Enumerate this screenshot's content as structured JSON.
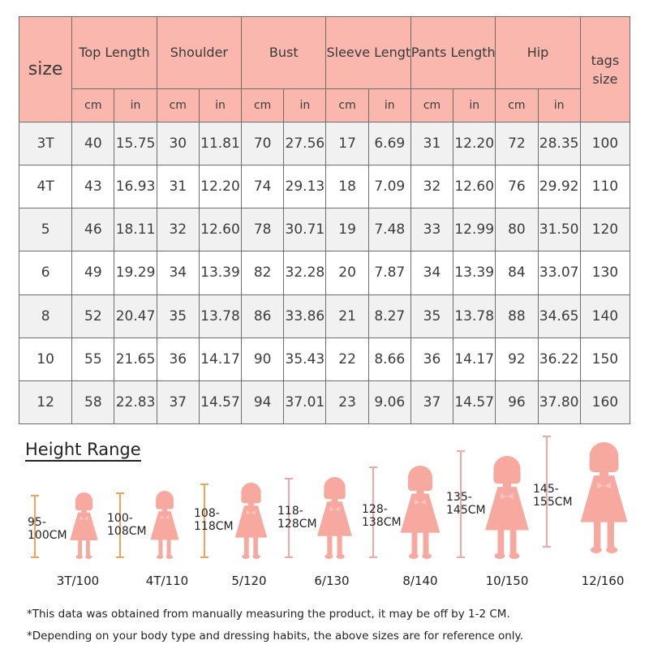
{
  "table": {
    "size_header": "size",
    "columns": [
      {
        "label": "Top Length",
        "units": [
          "cm",
          "in"
        ]
      },
      {
        "label": "Shoulder",
        "units": [
          "cm",
          "in"
        ]
      },
      {
        "label": "Bust",
        "units": [
          "cm",
          "in"
        ]
      },
      {
        "label": "Sleeve Length",
        "units": [
          "cm",
          "in"
        ]
      },
      {
        "label": "Pants Length",
        "units": [
          "cm",
          "in"
        ]
      },
      {
        "label": "Hip",
        "units": [
          "cm",
          "in"
        ]
      }
    ],
    "tags_header": "tags size",
    "rows": [
      [
        "3T",
        "40",
        "15.75",
        "30",
        "11.81",
        "70",
        "27.56",
        "17",
        "6.69",
        "31",
        "12.20",
        "72",
        "28.35",
        "100"
      ],
      [
        "4T",
        "43",
        "16.93",
        "31",
        "12.20",
        "74",
        "29.13",
        "18",
        "7.09",
        "32",
        "12.60",
        "76",
        "29.92",
        "110"
      ],
      [
        "5",
        "46",
        "18.11",
        "32",
        "12.60",
        "78",
        "30.71",
        "19",
        "7.48",
        "33",
        "12.99",
        "80",
        "31.50",
        "120"
      ],
      [
        "6",
        "49",
        "19.29",
        "34",
        "13.39",
        "82",
        "32.28",
        "20",
        "7.87",
        "34",
        "13.39",
        "84",
        "33.07",
        "130"
      ],
      [
        "8",
        "52",
        "20.47",
        "35",
        "13.78",
        "86",
        "33.86",
        "21",
        "8.27",
        "35",
        "13.78",
        "88",
        "34.65",
        "140"
      ],
      [
        "10",
        "55",
        "21.65",
        "36",
        "14.17",
        "90",
        "35.43",
        "22",
        "8.66",
        "36",
        "14.17",
        "92",
        "36.22",
        "150"
      ],
      [
        "12",
        "58",
        "22.83",
        "37",
        "14.57",
        "94",
        "37.01",
        "23",
        "9.06",
        "37",
        "14.57",
        "96",
        "37.80",
        "160"
      ]
    ]
  },
  "height_range": {
    "title": "Height Range",
    "items": [
      {
        "size": "3T/100",
        "range_top": "95-",
        "range_bottom": "100CM"
      },
      {
        "size": "4T/110",
        "range_top": "100-",
        "range_bottom": "108CM"
      },
      {
        "size": "5/120",
        "range_top": "108-",
        "range_bottom": "118CM"
      },
      {
        "size": "6/130",
        "range_top": "118-",
        "range_bottom": "128CM"
      },
      {
        "size": "8/140",
        "range_top": "128-",
        "range_bottom": "138CM"
      },
      {
        "size": "10/150",
        "range_top": "135-",
        "range_bottom": "145CM"
      },
      {
        "size": "12/160",
        "range_top": "145-",
        "range_bottom": "155CM"
      }
    ]
  },
  "notes": [
    "*This data was obtained from manually measuring the product, it may be off by 1-2 CM.",
    "*Depending on your body type and dressing habits, the above sizes are for reference only."
  ],
  "colors": {
    "header_bg": "#f9b7ae",
    "stripe_bg": "#f1f1f1",
    "figure_pink": "#f7a9a0",
    "ruler_orange": "#f5a15c",
    "ruler_pink": "#f0a8a2"
  }
}
